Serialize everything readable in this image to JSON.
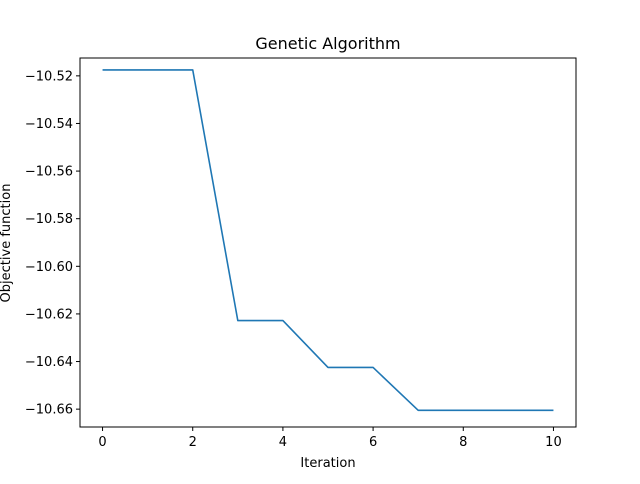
{
  "chart_data": {
    "type": "line",
    "title": "Genetic Algorithm",
    "xlabel": "Iteration",
    "ylabel": "Objective function",
    "xlim": [
      -0.5,
      10.5
    ],
    "ylim": [
      -10.6675,
      -10.5125
    ],
    "grid": false,
    "legend": "none",
    "x_ticks": [
      0,
      2,
      4,
      6,
      8,
      10
    ],
    "x_tick_labels": [
      "0",
      "2",
      "4",
      "6",
      "8",
      "10"
    ],
    "y_ticks": [
      -10.52,
      -10.54,
      -10.56,
      -10.58,
      -10.6,
      -10.62,
      -10.64,
      -10.66
    ],
    "y_tick_labels": [
      "−10.52",
      "−10.54",
      "−10.56",
      "−10.58",
      "−10.60",
      "−10.62",
      "−10.64",
      "−10.66"
    ],
    "series": [
      {
        "color": "#1f77b4",
        "x": [
          0,
          1,
          2,
          3,
          4,
          5,
          6,
          7,
          8,
          9,
          10
        ],
        "y": [
          -10.5175,
          -10.5175,
          -10.5175,
          -10.6228,
          -10.6228,
          -10.6425,
          -10.6425,
          -10.6605,
          -10.6605,
          -10.6605,
          -10.6605
        ]
      }
    ]
  }
}
